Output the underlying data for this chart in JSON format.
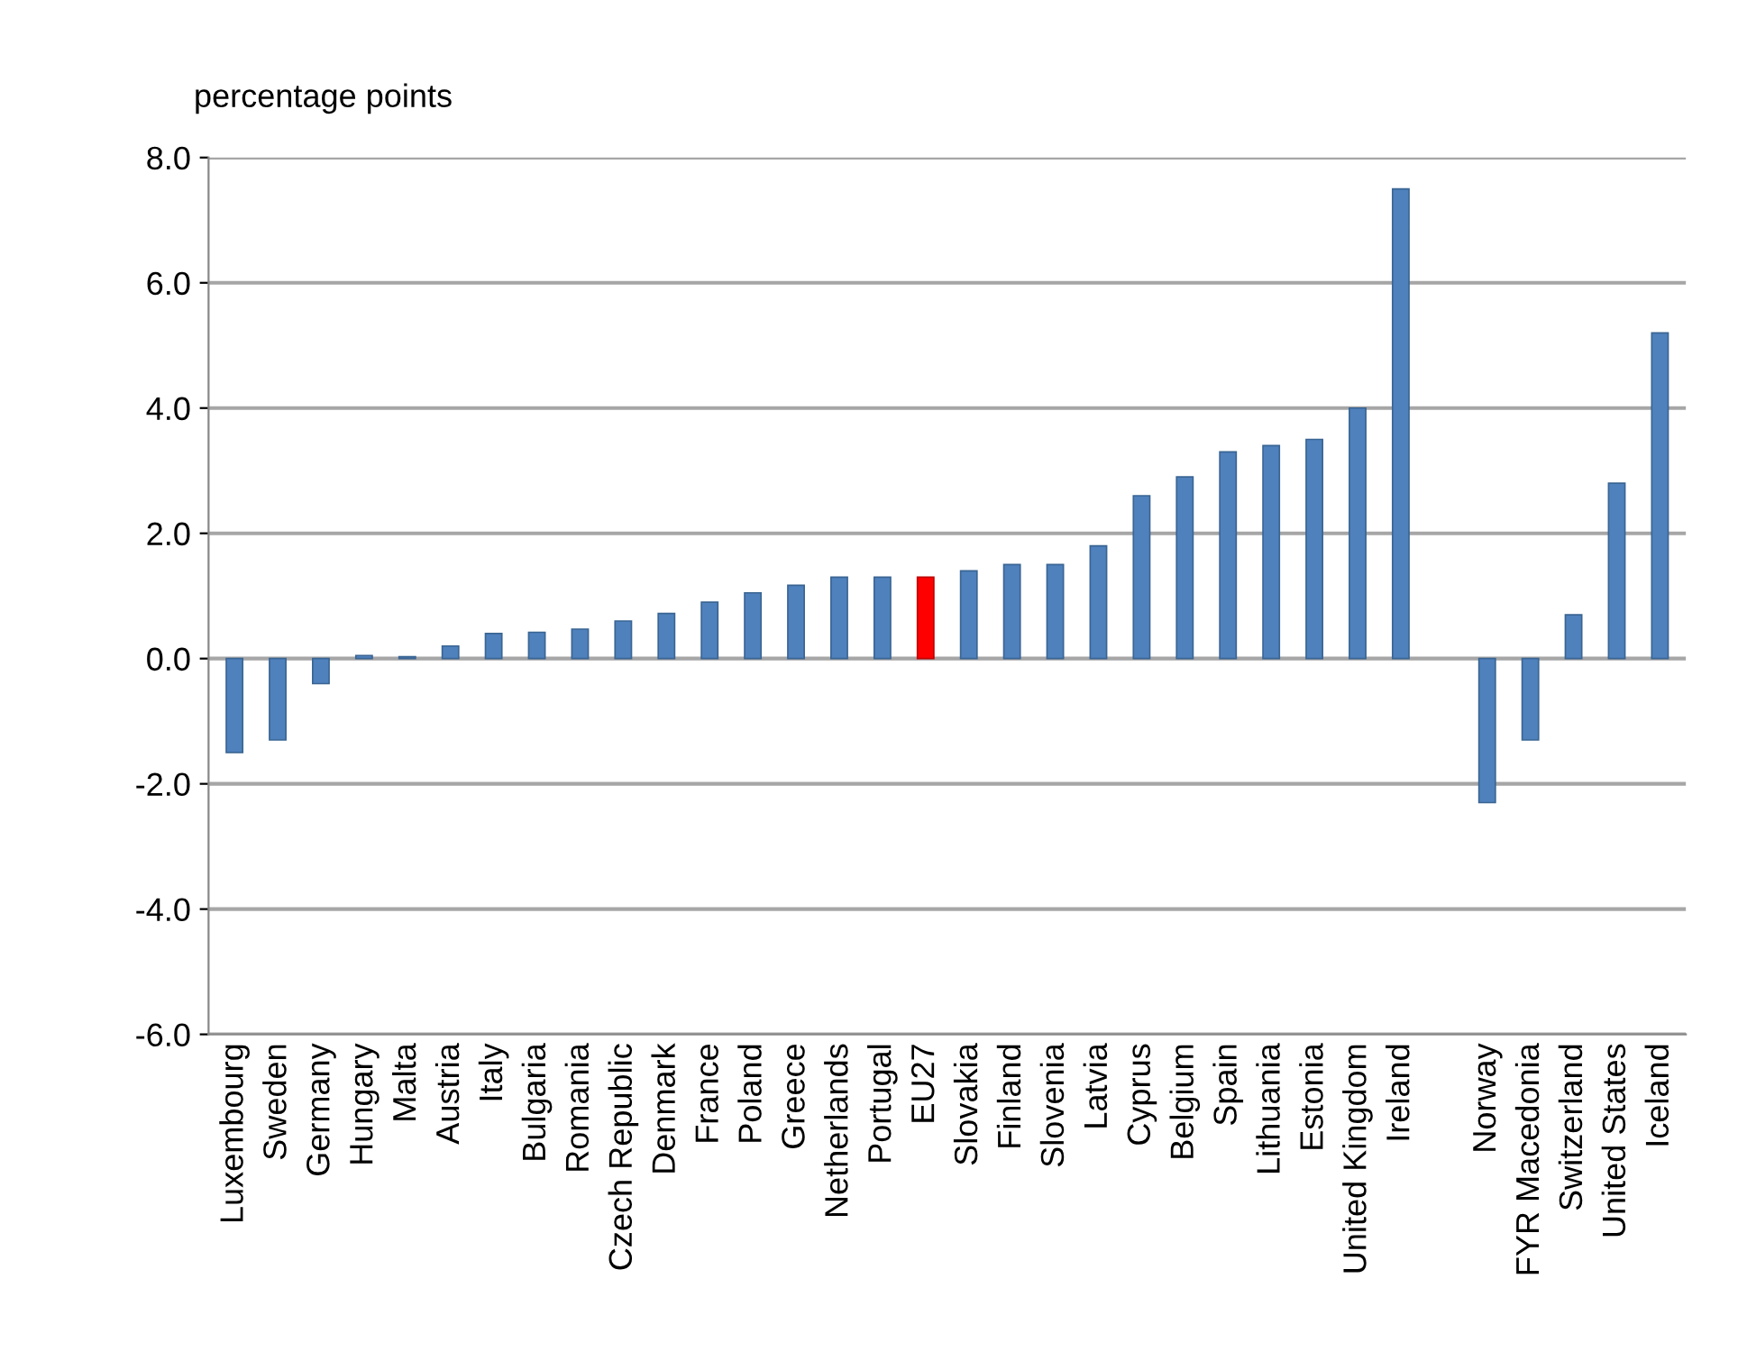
{
  "chart_data": {
    "type": "bar",
    "ylabel": "percentage points",
    "categories": [
      "Luxembourg",
      "Sweden",
      "Germany",
      "Hungary",
      "Malta",
      "Austria",
      "Italy",
      "Bulgaria",
      "Romania",
      "Czech Republic",
      "Denmark",
      "France",
      "Poland",
      "Greece",
      "Netherlands",
      "Portugal",
      "EU27",
      "Slovakia",
      "Finland",
      "Slovenia",
      "Latvia",
      "Cyprus",
      "Belgium",
      "Spain",
      "Lithuania",
      "Estonia",
      "United Kingdom",
      "Ireland",
      null,
      "Norway",
      "FYR Macedonia",
      "Switzerland",
      "United States",
      "Iceland"
    ],
    "values": [
      -1.5,
      -1.3,
      -0.4,
      0.05,
      0.03,
      0.2,
      0.4,
      0.42,
      0.47,
      0.6,
      0.72,
      0.9,
      1.05,
      1.17,
      1.3,
      1.3,
      1.3,
      1.4,
      1.5,
      1.5,
      1.8,
      2.6,
      2.9,
      3.3,
      3.4,
      3.5,
      4.0,
      7.5,
      null,
      -2.3,
      -1.3,
      0.7,
      2.8,
      5.2
    ],
    "colors": [
      "#4f81bd",
      "#4f81bd",
      "#4f81bd",
      "#4f81bd",
      "#4f81bd",
      "#4f81bd",
      "#4f81bd",
      "#4f81bd",
      "#4f81bd",
      "#4f81bd",
      "#4f81bd",
      "#4f81bd",
      "#4f81bd",
      "#4f81bd",
      "#4f81bd",
      "#4f81bd",
      "#ff0000",
      "#4f81bd",
      "#4f81bd",
      "#4f81bd",
      "#4f81bd",
      "#4f81bd",
      "#4f81bd",
      "#4f81bd",
      "#4f81bd",
      "#4f81bd",
      "#4f81bd",
      "#4f81bd",
      "#4f81bd",
      "#4f81bd",
      "#4f81bd",
      "#4f81bd",
      "#4f81bd",
      "#4f81bd"
    ],
    "ylim": [
      -6,
      8
    ],
    "yticks": [
      {
        "value": -6,
        "label": "-6.0"
      },
      {
        "value": -4,
        "label": "-4.0"
      },
      {
        "value": -2,
        "label": "-2.0"
      },
      {
        "value": 0,
        "label": "0.0"
      },
      {
        "value": 2,
        "label": "2.0"
      },
      {
        "value": 4,
        "label": "4.0"
      },
      {
        "value": 6,
        "label": "6.0"
      },
      {
        "value": 8,
        "label": "8.0"
      }
    ],
    "grid": "y",
    "legend": false
  }
}
